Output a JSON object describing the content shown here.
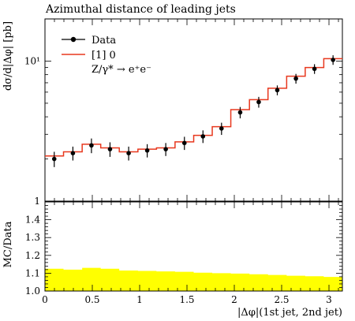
{
  "title": "Azimuthal distance of leading jets",
  "legend": {
    "data_label": "Data",
    "mc_label": "[1] 0",
    "process": "Z/γ* → e⁺e⁻"
  },
  "colors": {
    "data": "#000000",
    "mc": "#e8381e",
    "ratio_band": "#ffff00"
  },
  "chart_data": [
    {
      "type": "line",
      "title": "Azimuthal distance of leading jets",
      "xlabel": "|Δφ|(1st jet, 2nd jet)",
      "ylabel": "dσ/d|Δφ| [pb]",
      "xlim": [
        0,
        3.1416
      ],
      "ylim": [
        1,
        20
      ],
      "yscale": "log",
      "y_ticks": [
        {
          "value": 1,
          "label": "1"
        },
        {
          "value": 10,
          "label": "10¹"
        }
      ],
      "bin_edges": [
        0,
        0.196,
        0.393,
        0.589,
        0.785,
        0.982,
        1.178,
        1.374,
        1.571,
        1.767,
        1.963,
        2.16,
        2.356,
        2.553,
        2.749,
        2.945,
        3.1416
      ],
      "series": [
        {
          "name": "Data",
          "x": [
            0.098,
            0.295,
            0.491,
            0.687,
            0.884,
            1.08,
            1.276,
            1.473,
            1.669,
            1.865,
            2.062,
            2.258,
            2.454,
            2.651,
            2.847,
            3.043
          ],
          "y": [
            2.0,
            2.2,
            2.5,
            2.35,
            2.2,
            2.3,
            2.35,
            2.6,
            2.9,
            3.3,
            4.3,
            5.1,
            6.2,
            7.5,
            8.8,
            10.2
          ],
          "yerr": [
            0.25,
            0.25,
            0.3,
            0.28,
            0.25,
            0.25,
            0.25,
            0.28,
            0.3,
            0.33,
            0.4,
            0.45,
            0.5,
            0.6,
            0.7,
            0.8
          ]
        },
        {
          "name": "[1] 0",
          "y": [
            2.1,
            2.25,
            2.55,
            2.4,
            2.25,
            2.35,
            2.4,
            2.65,
            2.95,
            3.4,
            4.5,
            5.3,
            6.4,
            7.8,
            9.0,
            10.4
          ]
        }
      ]
    },
    {
      "type": "area",
      "ylabel": "MC/Data",
      "xlabel": "|Δφ|(1st jet, 2nd jet)",
      "xlim": [
        0,
        3.1416
      ],
      "ylim": [
        1.0,
        1.5
      ],
      "y_ticks": [
        1.0,
        1.1,
        1.2,
        1.3,
        1.4
      ],
      "x_ticks": [
        0,
        0.5,
        1,
        1.5,
        2,
        2.5,
        3
      ],
      "bin_edges": [
        0,
        0.196,
        0.393,
        0.589,
        0.785,
        0.982,
        1.178,
        1.374,
        1.571,
        1.767,
        1.963,
        2.16,
        2.356,
        2.553,
        2.749,
        2.945,
        3.1416
      ],
      "values": [
        1.125,
        1.12,
        1.13,
        1.125,
        1.115,
        1.113,
        1.11,
        1.108,
        1.103,
        1.1,
        1.098,
        1.094,
        1.09,
        1.086,
        1.083,
        1.079
      ]
    }
  ]
}
